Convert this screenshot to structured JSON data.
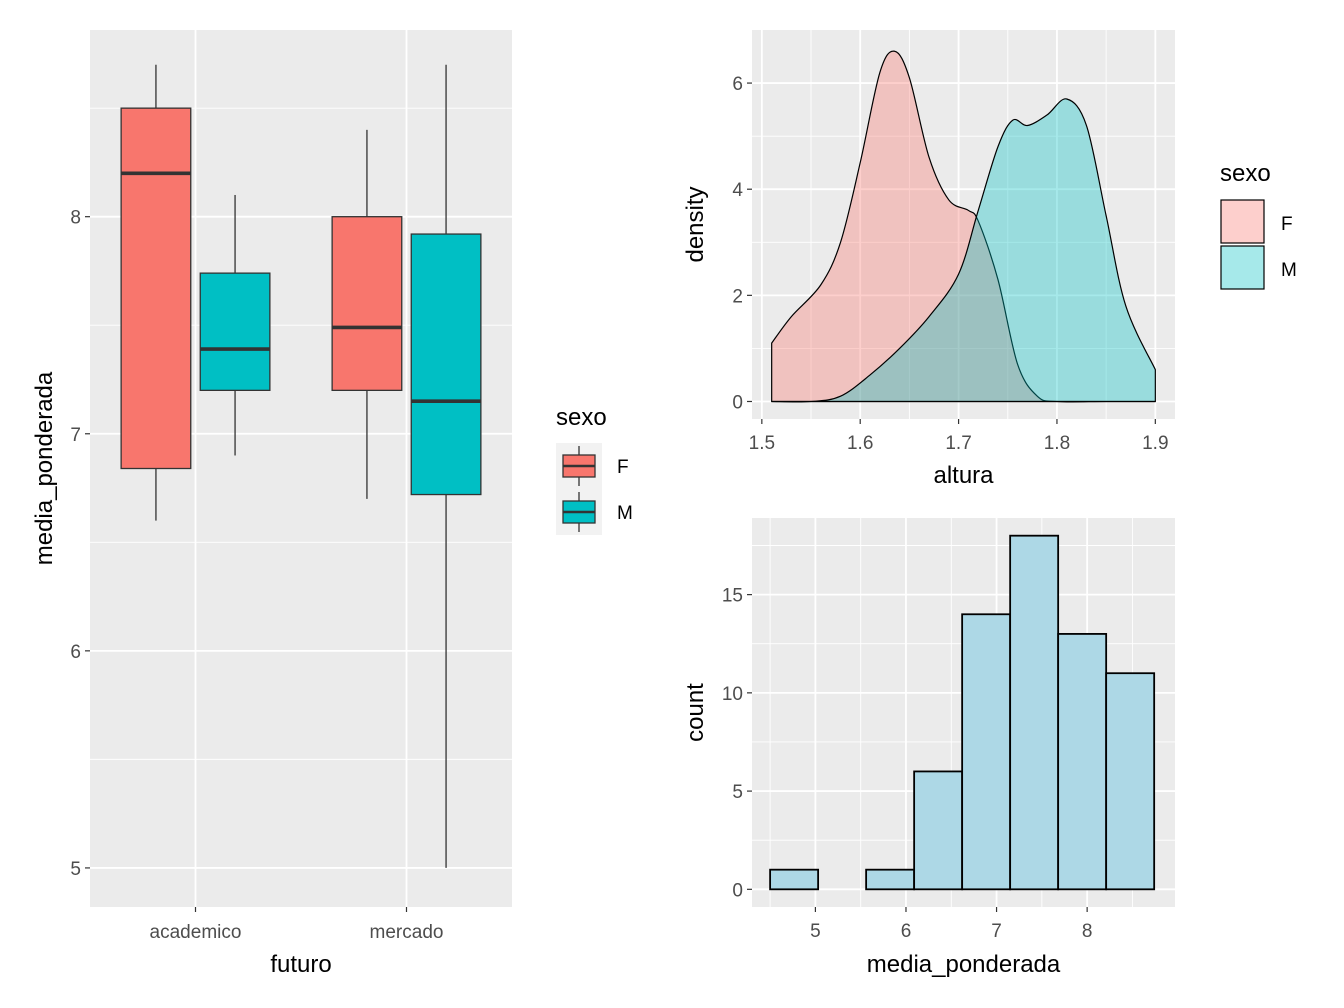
{
  "chart_data": [
    {
      "type": "box",
      "xlabel": "futuro",
      "ylabel": "media_ponderada",
      "categories": [
        "academico",
        "mercado"
      ],
      "y_ticks": [
        5,
        6,
        7,
        8
      ],
      "ylim": [
        4.82,
        8.86
      ],
      "grid": true,
      "legend": {
        "title": "sexo",
        "position": "right",
        "items": [
          {
            "label": "F",
            "color": "#F8766D"
          },
          {
            "label": "M",
            "color": "#00BFC4"
          }
        ]
      },
      "groups": [
        {
          "category": "academico",
          "sexo": "F",
          "min": 6.6,
          "q1": 6.84,
          "median": 8.2,
          "q3": 8.5,
          "max": 8.7
        },
        {
          "category": "academico",
          "sexo": "M",
          "min": 6.9,
          "q1": 7.2,
          "median": 7.39,
          "q3": 7.74,
          "max": 8.1
        },
        {
          "category": "mercado",
          "sexo": "F",
          "min": 6.7,
          "q1": 7.2,
          "median": 7.49,
          "q3": 8.0,
          "max": 8.4
        },
        {
          "category": "mercado",
          "sexo": "M",
          "min": 5.0,
          "q1": 6.72,
          "median": 7.15,
          "q3": 7.92,
          "max": 8.7
        }
      ]
    },
    {
      "type": "area",
      "subtype": "density",
      "xlabel": "altura",
      "ylabel": "density",
      "x_ticks": [
        1.5,
        1.6,
        1.7,
        1.8,
        1.9
      ],
      "y_ticks": [
        0,
        2,
        4,
        6
      ],
      "xlim": [
        1.49,
        1.92
      ],
      "ylim": [
        -0.33,
        7.0
      ],
      "grid": true,
      "legend": {
        "title": "sexo",
        "position": "right",
        "items": [
          {
            "label": "F",
            "color": "#F8766D"
          },
          {
            "label": "M",
            "color": "#00BFC4"
          }
        ]
      },
      "series": [
        {
          "name": "F",
          "color": "#F8766D",
          "x": [
            1.51,
            1.53,
            1.56,
            1.58,
            1.6,
            1.62,
            1.635,
            1.65,
            1.67,
            1.69,
            1.71,
            1.72,
            1.74,
            1.76,
            1.78,
            1.8,
            1.85,
            1.9
          ],
          "values": [
            1.1,
            1.6,
            2.2,
            3.0,
            4.5,
            6.2,
            6.6,
            6.1,
            4.6,
            3.8,
            3.6,
            3.4,
            2.3,
            0.7,
            0.1,
            0.0,
            0.0,
            0.0
          ]
        },
        {
          "name": "M",
          "color": "#00BFC4",
          "x": [
            1.51,
            1.55,
            1.58,
            1.61,
            1.64,
            1.67,
            1.7,
            1.72,
            1.74,
            1.755,
            1.77,
            1.79,
            1.81,
            1.83,
            1.85,
            1.87,
            1.9
          ],
          "values": [
            0.0,
            0.0,
            0.1,
            0.5,
            1.0,
            1.6,
            2.4,
            3.6,
            4.8,
            5.3,
            5.2,
            5.4,
            5.7,
            5.2,
            3.5,
            1.8,
            0.6
          ]
        }
      ]
    },
    {
      "type": "bar",
      "subtype": "histogram",
      "xlabel": "media_ponderada",
      "ylabel": "count",
      "x_ticks": [
        5,
        6,
        7,
        8
      ],
      "y_ticks": [
        0,
        5,
        10,
        15
      ],
      "xlim": [
        4.3,
        8.97
      ],
      "ylim": [
        -0.9,
        18.9
      ],
      "grid": true,
      "bin_edges": [
        4.5,
        5.03,
        5.56,
        6.09,
        6.62,
        7.15,
        7.68,
        8.21,
        8.74
      ],
      "values": [
        1,
        0,
        1,
        6,
        14,
        18,
        13,
        11
      ],
      "fill": "#ADD8E6"
    }
  ]
}
